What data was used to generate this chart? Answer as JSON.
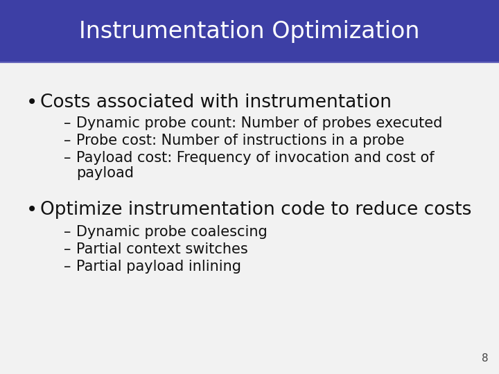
{
  "title": "Instrumentation Optimization",
  "title_bg_color": "#3d3fa5",
  "title_text_color": "#ffffff",
  "slide_bg_color": "#e8e8e8",
  "content_bg_color": "#f2f2f2",
  "bullet1": "Costs associated with instrumentation",
  "sub1_1": "Dynamic probe count: Number of probes executed",
  "sub1_2": "Probe cost: Number of instructions in a probe",
  "sub1_3a": "Payload cost: Frequency of invocation and cost of",
  "sub1_3b": "payload",
  "bullet2": "Optimize instrumentation code to reduce costs",
  "sub2_1": "Dynamic probe coalescing",
  "sub2_2": "Partial context switches",
  "sub2_3": "Partial payload inlining",
  "page_number": "8",
  "title_fontsize": 24,
  "bullet_fontsize": 19,
  "sub_fontsize": 15,
  "page_fontsize": 11,
  "title_bar_height": 90,
  "title_bar_bottom_line_color": "#5555aa",
  "text_color": "#111111"
}
